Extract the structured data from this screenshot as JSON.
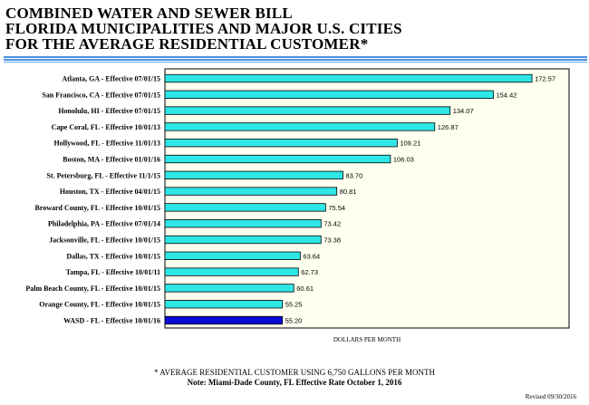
{
  "title_lines": [
    "COMBINED WATER AND SEWER BILL",
    "FLORIDA MUNICIPALITIES AND MAJOR U.S. CITIES",
    "FOR THE AVERAGE RESIDENTIAL CUSTOMER*"
  ],
  "colors": {
    "bar": "#2fe6e6",
    "highlight_bar": "#0a0ad8",
    "plot_background": "#fffff0",
    "title_rule": "#4a90e2"
  },
  "chart_data": {
    "type": "bar",
    "orientation": "horizontal",
    "categories": [
      "Atlanta, GA - Effective 07/01/15",
      "San Francisco, CA - Effective 07/01/15",
      "Honolulu, HI - Effective 07/01/15",
      "Cape Coral, FL - Effective 10/01/13",
      "Hollywood, FL - Effective 11/01/13",
      "Boston, MA - Effective 01/01/16",
      "St. Petersburg, FL - Effective 11/1/15",
      "Houston, TX - Effective 04/01/15",
      "Broward County, FL - Effective 10/01/15",
      "Philadelphia, PA - Effective 07/01/14",
      "Jacksonville, FL - Effective 10/01/15",
      "Dallas, TX - Effective 10/01/15",
      "Tampa, FL - Effective 10/01/11",
      "Palm Beach County, FL - Effective 10/01/15",
      "Orange County, FL - Effective 10/01/15",
      "WASD - FL - Effective 10/01/16"
    ],
    "values": [
      172.57,
      154.42,
      134.07,
      126.87,
      109.21,
      106.03,
      83.7,
      80.81,
      75.54,
      73.42,
      73.38,
      63.64,
      62.73,
      60.61,
      55.25,
      55.2
    ],
    "value_labels": [
      "172.57",
      "154.42",
      "134.07",
      "126.87",
      "109.21",
      "106.03",
      "83.70",
      "80.81",
      "75.54",
      "73.42",
      "73.38",
      "63.64",
      "62.73",
      "60.61",
      "55.25",
      "55.20"
    ],
    "highlight_index": 15,
    "xlabel": "DOLLARS PER MONTH",
    "ylabel": "",
    "xlim": [
      0,
      190
    ],
    "grid": false,
    "legend": "none"
  },
  "footnotes": {
    "note1": "* AVERAGE RESIDENTIAL CUSTOMER USING 6,750 GALLONS PER MONTH",
    "note2": "Note:  Miami-Dade County, FL Effective Rate October 1, 2016",
    "revised": "Revised 09/30/2016"
  }
}
